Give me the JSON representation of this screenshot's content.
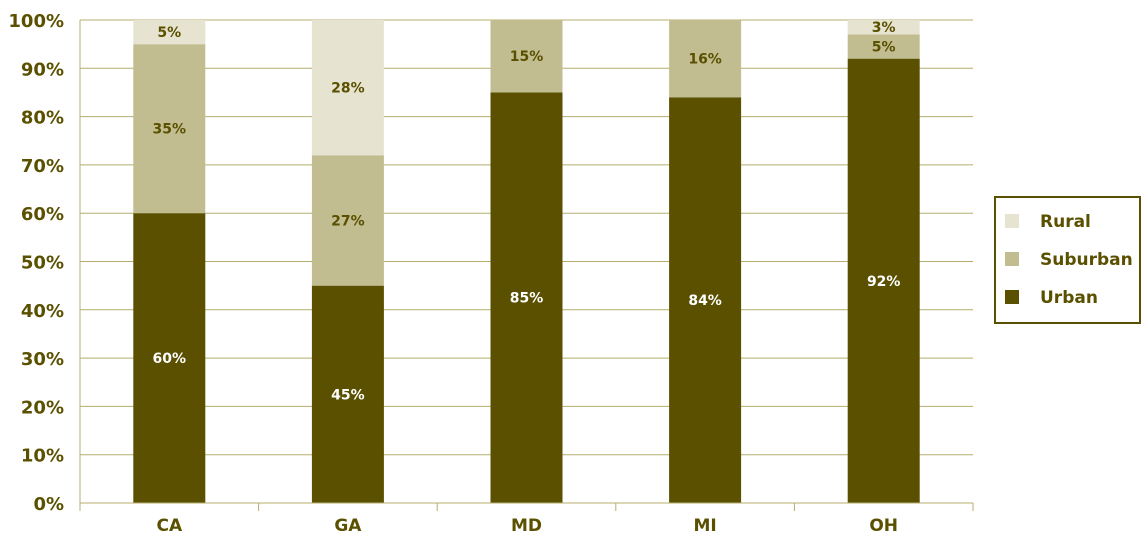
{
  "chart_data": {
    "type": "bar",
    "stacked": true,
    "categories": [
      "CA",
      "GA",
      "MD",
      "MI",
      "OH"
    ],
    "series": [
      {
        "name": "Urban",
        "values": [
          60,
          45,
          85,
          84,
          92
        ],
        "labels": [
          "60%",
          "45%",
          "85%",
          "84%",
          "92%"
        ],
        "color": "#5a5000",
        "label_color": "#ffffff"
      },
      {
        "name": "Suburban",
        "values": [
          35,
          27,
          15,
          16,
          5
        ],
        "labels": [
          "35%",
          "27%",
          "15%",
          "16%",
          "5%"
        ],
        "color": "#c1bd90",
        "label_color": "#5a5000"
      },
      {
        "name": "Rural",
        "values": [
          5,
          28,
          0,
          0,
          3
        ],
        "labels": [
          "5%",
          "28%",
          "",
          "",
          "3%"
        ],
        "color": "#e6e3d0",
        "label_color": "#5a5000"
      }
    ],
    "title": "",
    "xlabel": "",
    "ylabel": "",
    "ylim": [
      0,
      100
    ],
    "yticks": [
      0,
      10,
      20,
      30,
      40,
      50,
      60,
      70,
      80,
      90,
      100
    ],
    "ytick_labels": [
      "0%",
      "10%",
      "20%",
      "30%",
      "40%",
      "50%",
      "60%",
      "70%",
      "80%",
      "90%",
      "100%"
    ],
    "grid": true,
    "grid_color": "#b4ad6e",
    "axis_color": "#5a5000",
    "legend": {
      "placement": "right",
      "entries": [
        "Rural",
        "Suburban",
        "Urban"
      ],
      "border_color": "#5a5000"
    }
  }
}
